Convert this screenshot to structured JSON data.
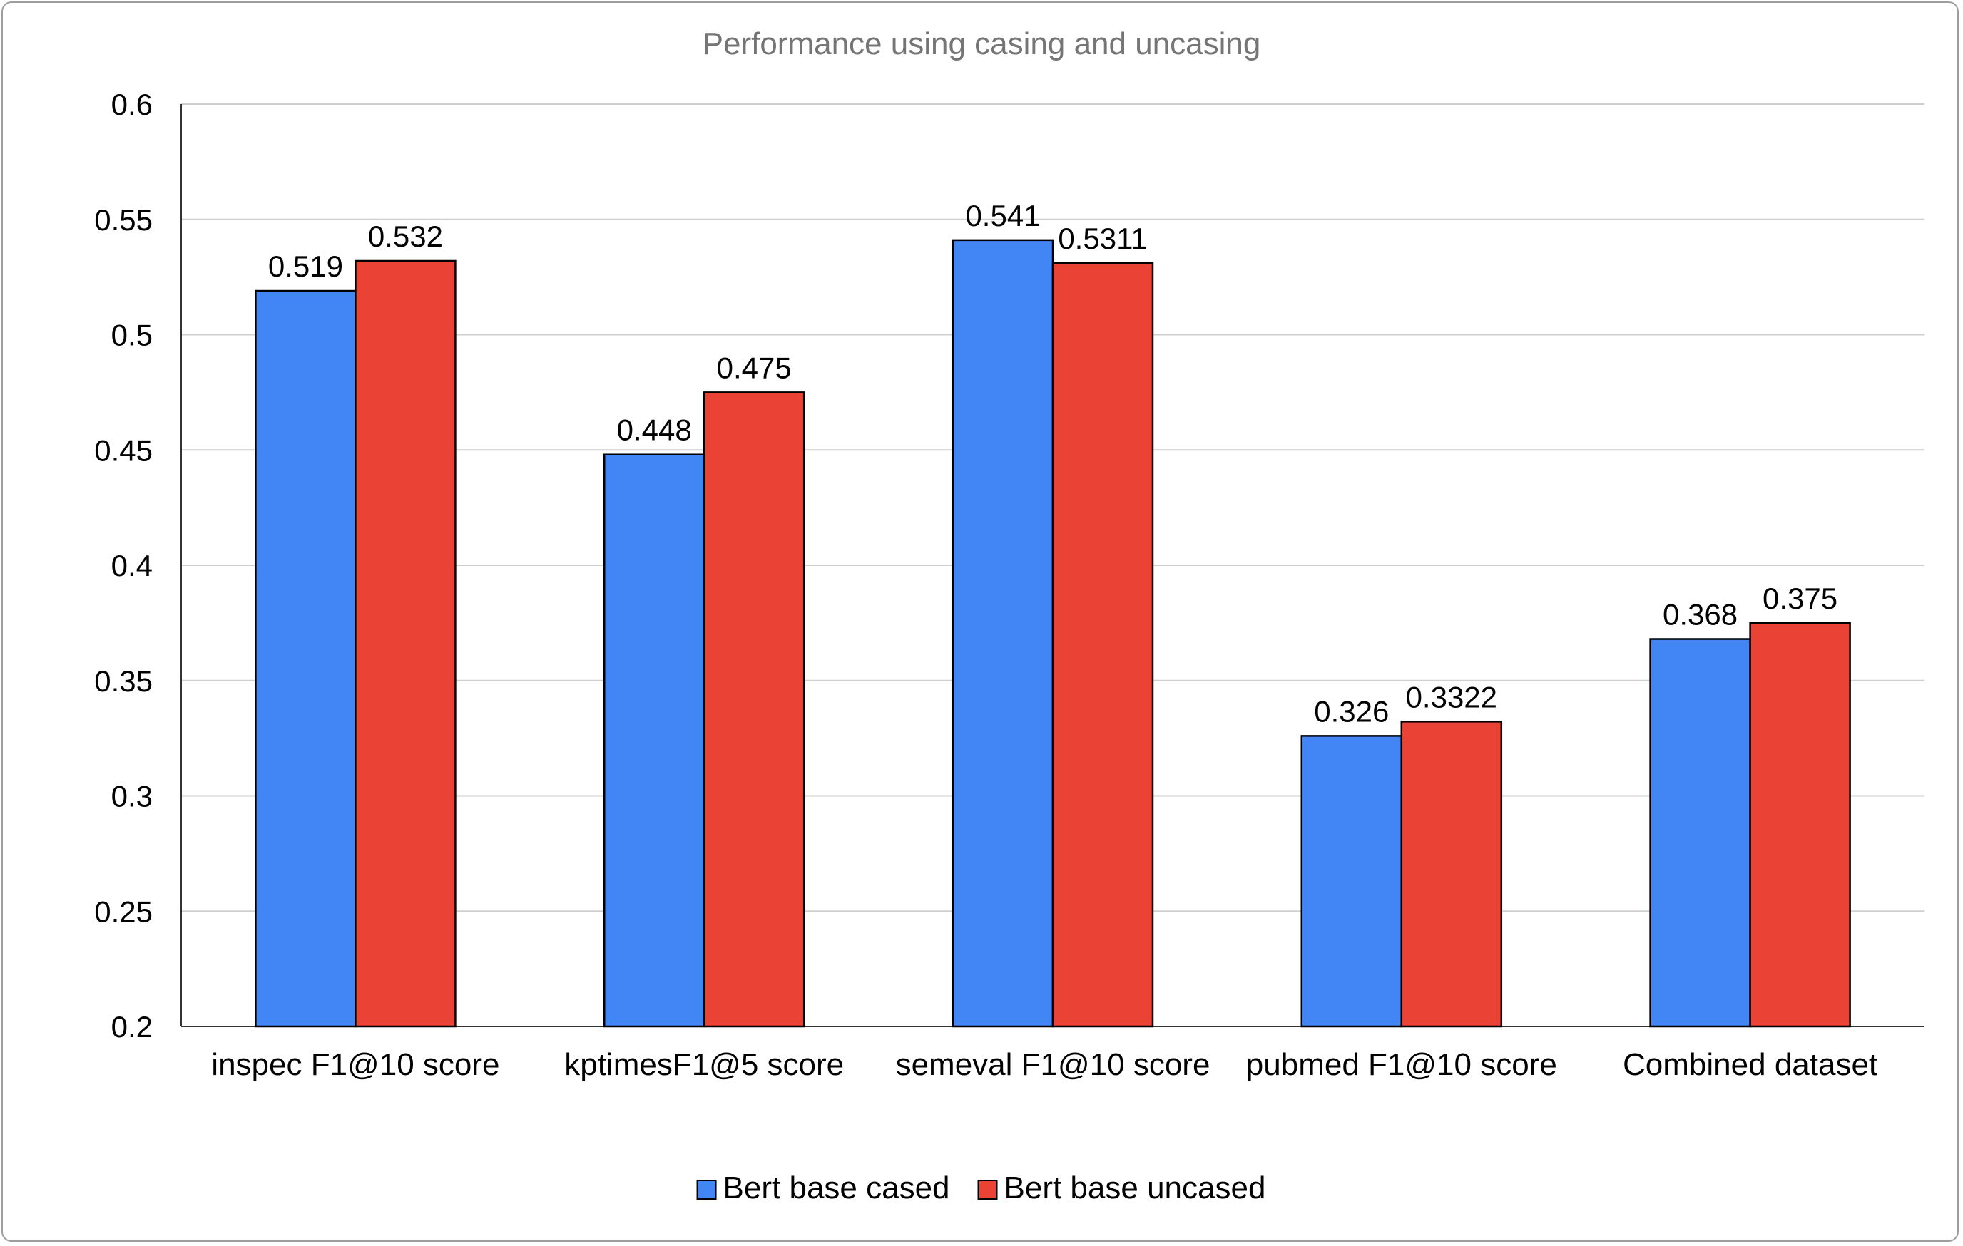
{
  "chart_data": {
    "type": "bar",
    "title": "Performance using casing and uncasing",
    "xlabel": "",
    "ylabel": "",
    "categories": [
      "inspec F1@10 score",
      "kptimesF1@5 score",
      "semeval F1@10 score",
      "pubmed F1@10 score",
      "Combined dataset"
    ],
    "series": [
      {
        "name": "Bert base cased",
        "color": "#4285f4",
        "values": [
          0.519,
          0.448,
          0.541,
          0.326,
          0.368
        ],
        "labels": [
          "0.519",
          "0.448",
          "0.541",
          "0.326",
          "0.368"
        ]
      },
      {
        "name": "Bert base uncased",
        "color": "#ea4335",
        "values": [
          0.532,
          0.475,
          0.5311,
          0.3322,
          0.375
        ],
        "labels": [
          "0.532",
          "0.475",
          "0.5311",
          "0.3322",
          "0.375"
        ]
      }
    ],
    "ylim": [
      0.2,
      0.6
    ],
    "yticks": [
      "0.2",
      "0.25",
      "0.3",
      "0.35",
      "0.4",
      "0.45",
      "0.5",
      "0.55",
      "0.6"
    ],
    "grid": true,
    "legend_position": "bottom"
  }
}
